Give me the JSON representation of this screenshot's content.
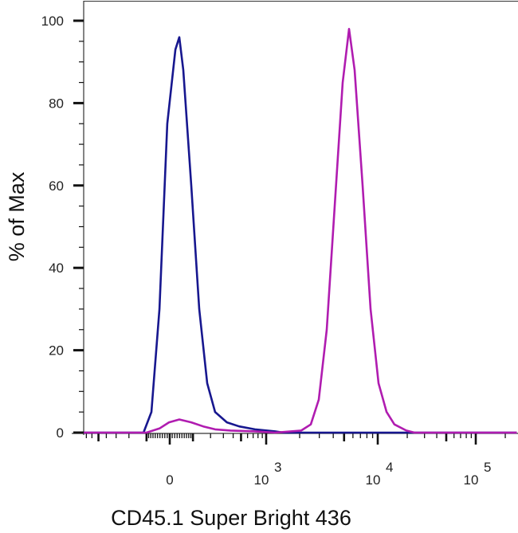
{
  "chart_data": {
    "type": "line",
    "subtype": "flow-cytometry-histogram",
    "title": "",
    "xlabel": "CD45.1 Super Bright 436",
    "ylabel": "% of Max",
    "xscale": "biexponential",
    "xlim": [
      -750,
      262143
    ],
    "ylim": [
      0,
      100
    ],
    "grid": false,
    "legend": "none",
    "yticks": [
      {
        "value": 0,
        "label": "0"
      },
      {
        "value": 20,
        "label": "20"
      },
      {
        "value": 40,
        "label": "40"
      },
      {
        "value": 60,
        "label": "60"
      },
      {
        "value": 80,
        "label": "80"
      },
      {
        "value": 100,
        "label": "100"
      }
    ],
    "xticks": [
      {
        "value": 0,
        "base": "0",
        "exp": ""
      },
      {
        "value": 1000,
        "base": "10",
        "exp": "3"
      },
      {
        "value": 10000,
        "base": "10",
        "exp": "4"
      },
      {
        "value": 100000,
        "base": "10",
        "exp": "5"
      }
    ],
    "series": [
      {
        "color": "#17178f",
        "points": [
          [
            -750,
            0
          ],
          [
            -115,
            0
          ],
          [
            -77,
            5
          ],
          [
            -42,
            30
          ],
          [
            -10,
            75
          ],
          [
            23,
            93
          ],
          [
            39,
            96
          ],
          [
            56,
            88
          ],
          [
            92,
            60
          ],
          [
            132,
            30
          ],
          [
            178,
            12
          ],
          [
            232,
            5
          ],
          [
            333,
            2.5
          ],
          [
            474,
            1.5
          ],
          [
            735,
            0.8
          ],
          [
            1200,
            0.3
          ],
          [
            1440,
            0
          ],
          [
            262143,
            0
          ]
        ]
      },
      {
        "color": "#b01cb0",
        "points": [
          [
            -750,
            0
          ],
          [
            -100,
            0
          ],
          [
            -42,
            1
          ],
          [
            -3,
            2.5
          ],
          [
            39,
            3.2
          ],
          [
            92,
            2.5
          ],
          [
            154,
            1.5
          ],
          [
            232,
            0.8
          ],
          [
            370,
            0.5
          ],
          [
            735,
            0.3
          ],
          [
            1200,
            0
          ],
          [
            2067,
            0.5
          ],
          [
            2517,
            2
          ],
          [
            2970,
            8
          ],
          [
            3500,
            25
          ],
          [
            4120,
            55
          ],
          [
            4860,
            85
          ],
          [
            5540,
            98
          ],
          [
            6210,
            88
          ],
          [
            7320,
            60
          ],
          [
            8620,
            30
          ],
          [
            10190,
            12
          ],
          [
            12300,
            5
          ],
          [
            14800,
            2
          ],
          [
            19600,
            0.5
          ],
          [
            23700,
            0
          ],
          [
            262143,
            0
          ]
        ]
      }
    ]
  }
}
